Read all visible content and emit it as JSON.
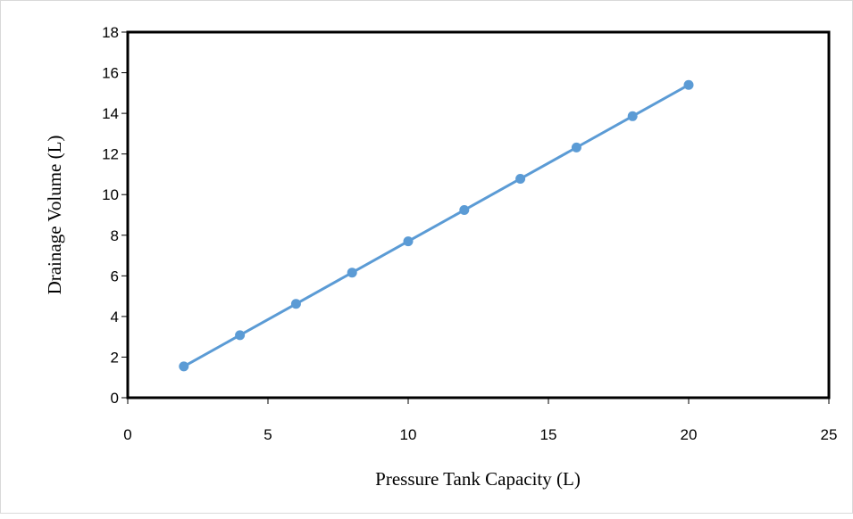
{
  "chart_data": {
    "type": "scatter",
    "xlabel": "Pressure Tank Capacity (L)",
    "ylabel": "Drainage Volume (L)",
    "xlim": [
      0,
      25
    ],
    "ylim": [
      0,
      18
    ],
    "xticks": [
      0,
      5,
      10,
      15,
      20,
      25
    ],
    "yticks": [
      0,
      2,
      4,
      6,
      8,
      10,
      12,
      14,
      16,
      18
    ],
    "grid": false,
    "legend": "none",
    "series": [
      {
        "color": "#5b9bd5",
        "marker": "circle",
        "line": true,
        "x": [
          2,
          4,
          6,
          8,
          10,
          12,
          14,
          16,
          18,
          20
        ],
        "y": [
          1.54,
          3.08,
          4.62,
          6.16,
          7.7,
          9.24,
          10.78,
          12.32,
          13.86,
          15.4
        ]
      }
    ]
  }
}
